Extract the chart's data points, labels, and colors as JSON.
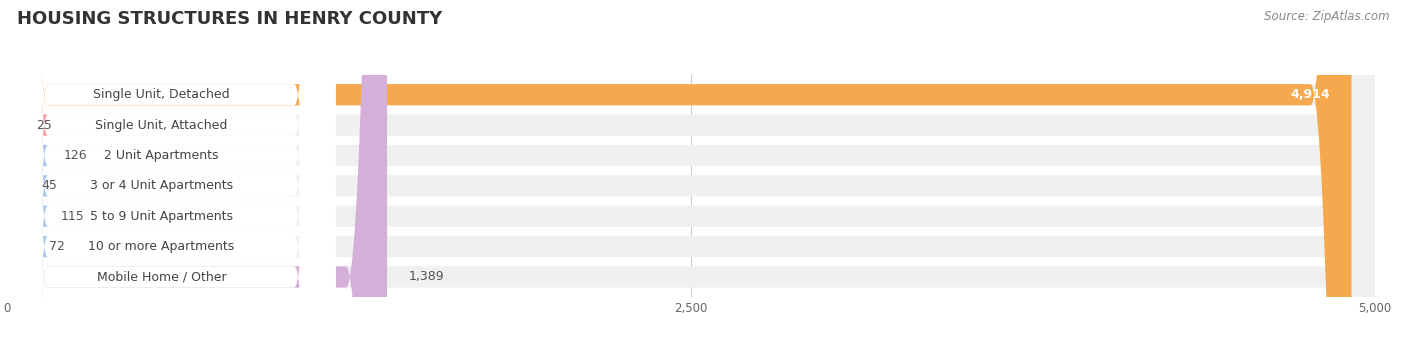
{
  "title": "HOUSING STRUCTURES IN HENRY COUNTY",
  "source": "Source: ZipAtlas.com",
  "categories": [
    "Single Unit, Detached",
    "Single Unit, Attached",
    "2 Unit Apartments",
    "3 or 4 Unit Apartments",
    "5 to 9 Unit Apartments",
    "10 or more Apartments",
    "Mobile Home / Other"
  ],
  "values": [
    4914,
    25,
    126,
    45,
    115,
    72,
    1389
  ],
  "bar_colors": [
    "#f5a84e",
    "#f2a0a0",
    "#a8c8f0",
    "#a8c8f0",
    "#a8c8f0",
    "#a8c8f0",
    "#d4b0d8"
  ],
  "bar_bg_color": "#f0f0f0",
  "xlim": [
    0,
    5000
  ],
  "xticks": [
    0,
    2500,
    5000
  ],
  "title_fontsize": 13,
  "label_fontsize": 9,
  "value_fontsize": 9,
  "source_fontsize": 8.5,
  "background_color": "#ffffff",
  "bar_height": 0.7,
  "label_color": "#444444",
  "value_color_outside": "#555555",
  "value_color_inside": "#ffffff"
}
